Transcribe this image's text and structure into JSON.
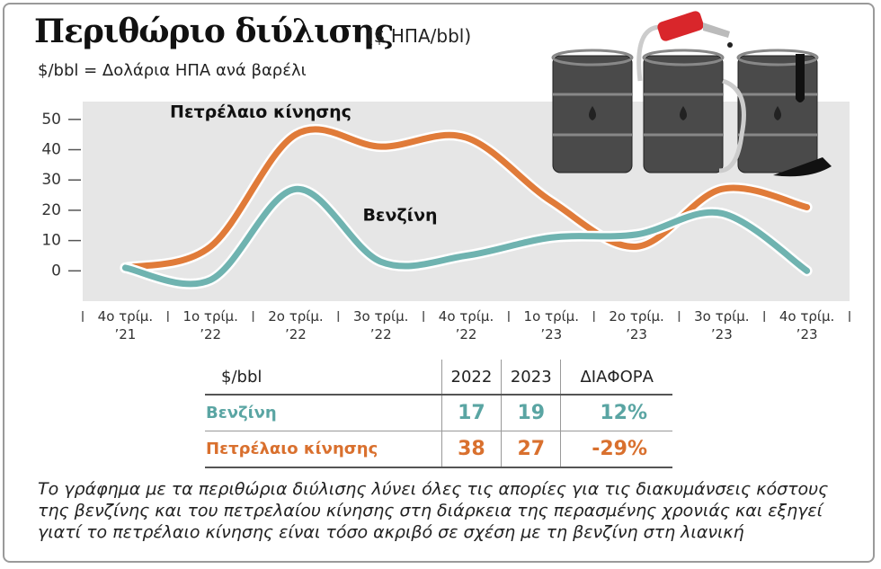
{
  "chart_data": {
    "type": "line",
    "title": "Περιθώριο διύλισης",
    "subtitle": "($ ΗΠΑ/bbl)",
    "note": "$/bbl = Δολάρια ΗΠΑ ανά βαρέλι",
    "categories": [
      "4ο τρίμ. ’21",
      "1ο τρίμ. ’22",
      "2ο τρίμ. ’22",
      "3ο τρίμ. ’22",
      "4ο τρίμ. ’22",
      "1ο τρίμ. ’23",
      "2ο τρίμ. ’23",
      "3ο τρίμ. ’23",
      "4ο τρίμ. ’23"
    ],
    "series": [
      {
        "name": "Πετρέλαιο κίνησης",
        "color": "#e07b39",
        "values": [
          1,
          8,
          45,
          41,
          44,
          23,
          8,
          27,
          21
        ]
      },
      {
        "name": "Βενζίνη",
        "color": "#6fb3b0",
        "values": [
          1,
          -3,
          27,
          3,
          5,
          11,
          12,
          19,
          0
        ]
      }
    ],
    "ylim": [
      -10,
      55
    ],
    "yticks": [
      0,
      10,
      20,
      30,
      40,
      50
    ]
  },
  "table": {
    "header": [
      "$/bbl",
      "2022",
      "2023",
      "ΔΙΑΦΟΡΑ"
    ],
    "rows": [
      [
        "Βενζίνη",
        17,
        19,
        "12%"
      ],
      [
        "Πετρέλαιο κίνησης",
        38,
        27,
        "-29%"
      ]
    ]
  },
  "caption": "Το γράφημα με τα περιθώρια διύλισης λύνει όλες τις απορίες για τις διακυμάνσεις κόστους της βενζίνης και του πετρελαίου κίνησης στη διάρκεια της περασμένης χρονιάς και εξηγεί γιατί το πετρέλαιο κίνησης είναι τόσο ακριβό σε σχέση με τη βενζίνη στη λιανική"
}
